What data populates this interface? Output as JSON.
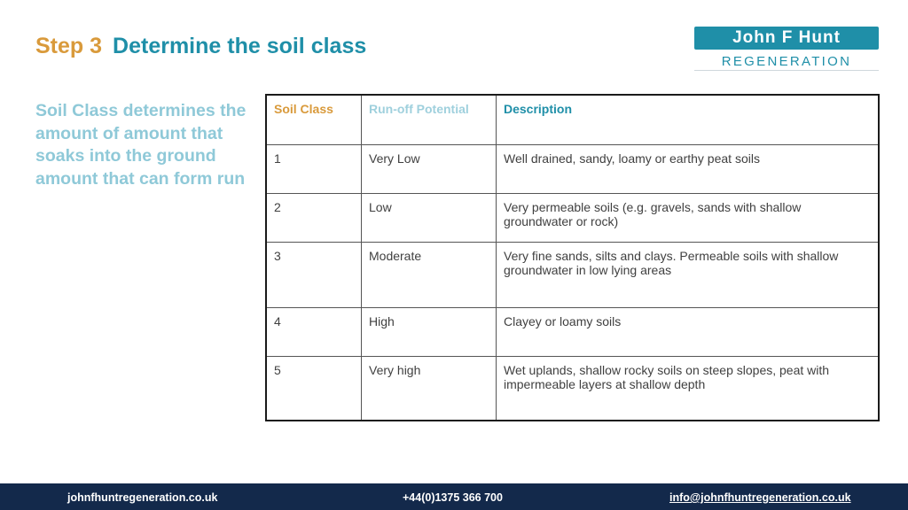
{
  "title": {
    "step": "Step 3",
    "heading": "Determine the soil class"
  },
  "logo": {
    "top": "John F Hunt",
    "bottom": "REGENERATION"
  },
  "side_text": "Soil Class determines the amount of amount that soaks into the ground amount that can form run",
  "table": {
    "headers": [
      "Soil Class",
      "Run-off Potential",
      "Description"
    ],
    "rows": [
      [
        "1",
        "Very Low",
        "Well drained, sandy, loamy or earthy peat soils"
      ],
      [
        "2",
        "Low",
        "Very permeable soils (e.g. gravels, sands with shallow groundwater or rock)"
      ],
      [
        "3",
        "Moderate",
        "Very fine sands, silts and clays. Permeable soils with shallow groundwater in low lying areas"
      ],
      [
        "4",
        "High",
        "Clayey or loamy soils"
      ],
      [
        "5",
        "Very high",
        "Wet uplands, shallow rocky soils on steep slopes, peat with impermeable layers at shallow depth"
      ]
    ]
  },
  "footer": {
    "website": "johnfhuntregeneration.co.uk",
    "phone": "+44(0)1375 366 700",
    "email": "info@johnfhuntregeneration.co.uk"
  },
  "colors": {
    "orange": "#d99a3b",
    "teal": "#1f8fa8",
    "light_teal": "#8fc9d8",
    "footer_bg": "#13294b"
  }
}
